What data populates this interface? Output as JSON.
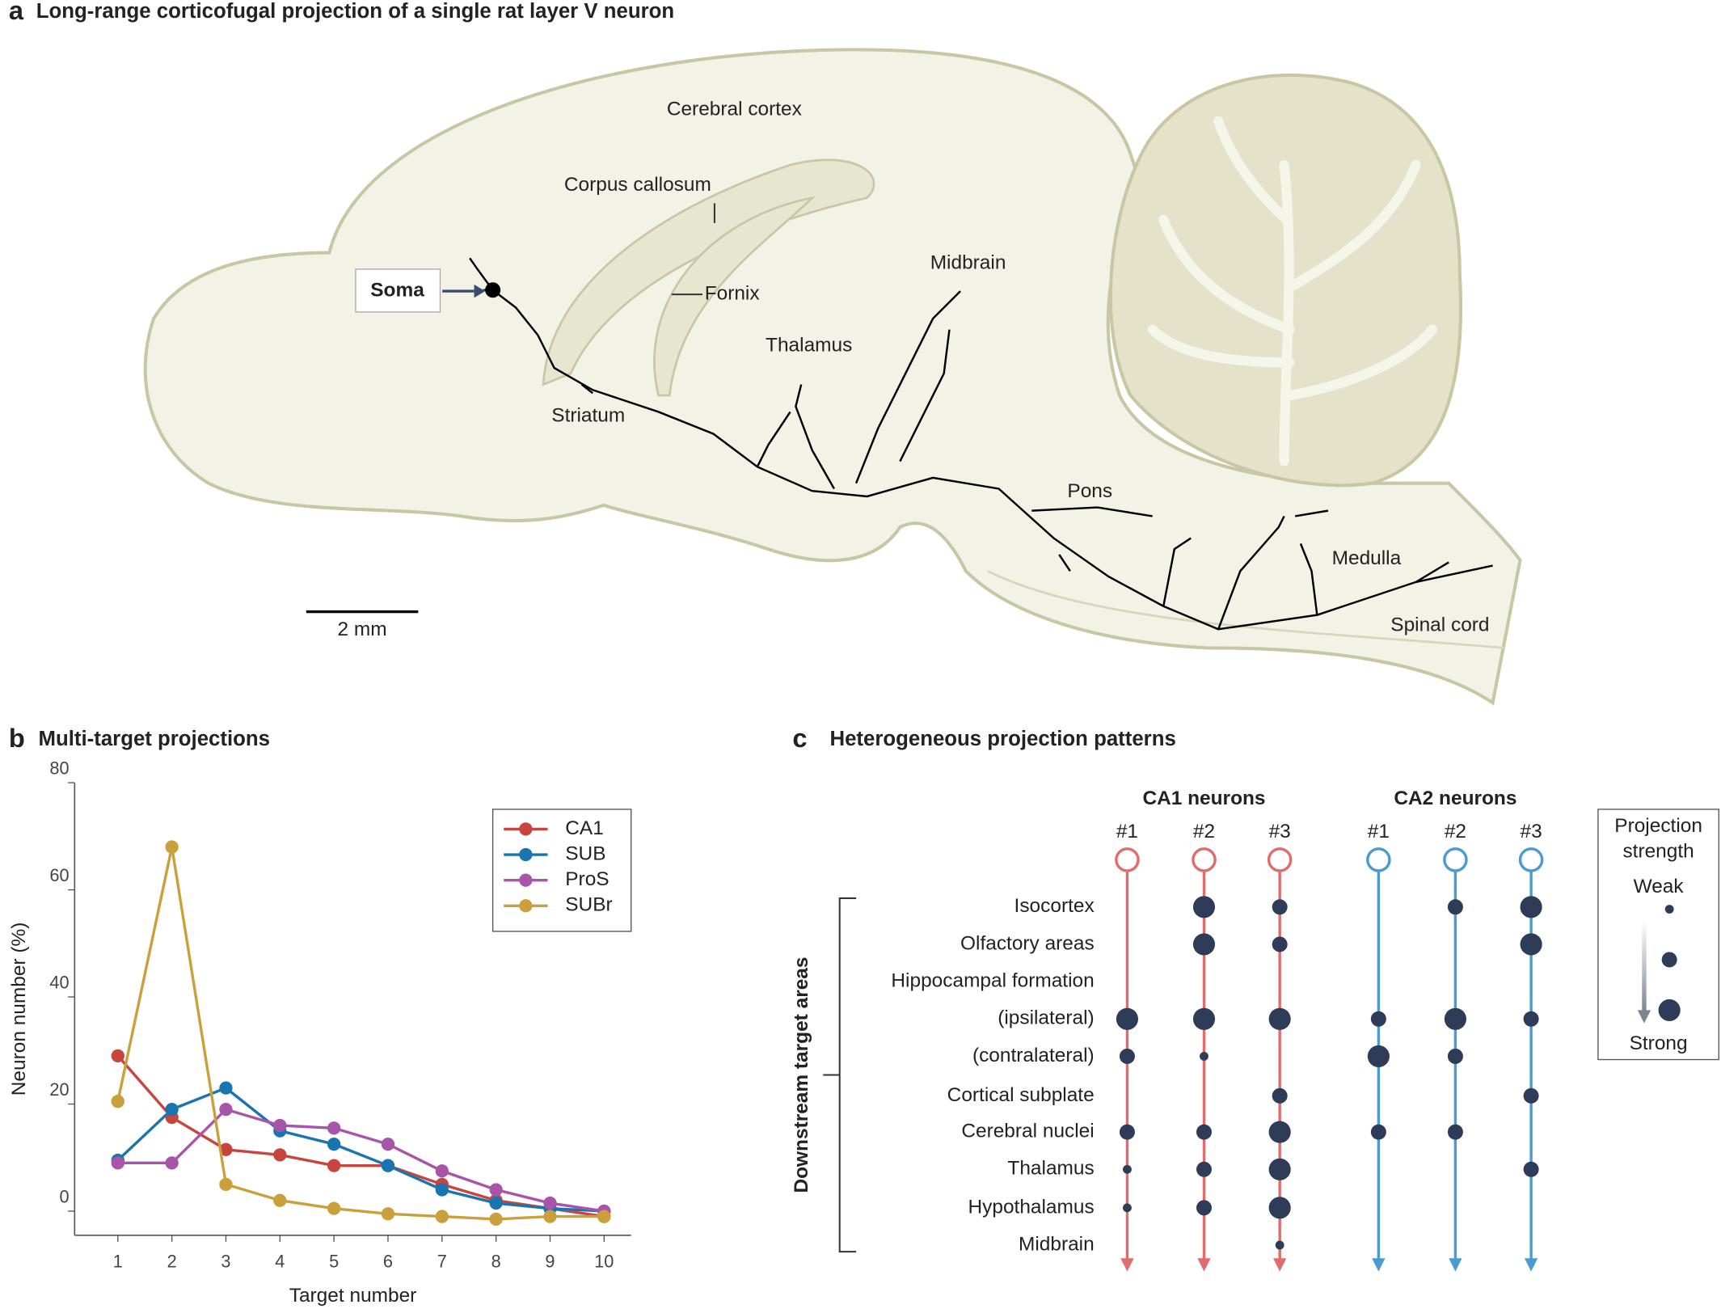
{
  "panel_a": {
    "letter": "a",
    "title": "Long-range corticofugal projection of a single rat layer V neuron",
    "labels": {
      "cerebral_cortex": "Cerebral cortex",
      "corpus_callosum": "Corpus callosum",
      "midbrain": "Midbrain",
      "soma": "Soma",
      "fornix": "Fornix",
      "thalamus": "Thalamus",
      "striatum": "Striatum",
      "pons": "Pons",
      "medulla": "Medulla",
      "spinal_cord": "Spinal cord"
    },
    "scale_bar": "2 mm"
  },
  "panel_b": {
    "letter": "b",
    "title": "Multi-target projections"
  },
  "chart_data": {
    "type": "line",
    "x_label": "Target number",
    "y_label": "Neuron number (%)",
    "x": [
      1,
      2,
      3,
      4,
      5,
      6,
      7,
      8,
      9,
      10
    ],
    "series": [
      {
        "name": "CA1",
        "color": "#c8443f",
        "values": [
          29,
          17.5,
          11.5,
          10.5,
          8.5,
          8.5,
          5,
          2,
          0.5,
          -1
        ]
      },
      {
        "name": "SUB",
        "color": "#1a74b0",
        "values": [
          9.5,
          19,
          23,
          15,
          12.5,
          8.5,
          4,
          1.5,
          0.5,
          0
        ]
      },
      {
        "name": "ProS",
        "color": "#a854a8",
        "values": [
          9,
          9,
          19,
          16,
          15.5,
          12.5,
          7.5,
          4,
          1.5,
          0
        ]
      },
      {
        "name": "SUBr",
        "color": "#c9a03c",
        "values": [
          20.5,
          68,
          5,
          2,
          0.5,
          -0.5,
          -1,
          -1.5,
          -1,
          -1
        ]
      }
    ],
    "xlim": [
      0.2,
      10.5
    ],
    "ylim": [
      -4.5,
      80
    ],
    "xticks": [
      1,
      2,
      3,
      4,
      5,
      6,
      7,
      8,
      9,
      10
    ],
    "yticks": [
      0,
      20,
      40,
      60,
      80
    ],
    "legend": "upper right",
    "grid": false
  },
  "panel_c": {
    "letter": "c",
    "title": "Heterogeneous projection patterns",
    "side_label": "Downstream target areas",
    "rows": [
      "Isocortex",
      "Olfactory areas",
      "Hippocampal formation",
      "(ipsilateral)",
      "(contralateral)",
      "Cortical subplate",
      "Cerebral nuclei",
      "Thalamus",
      "Hypothalamus",
      "Midbrain"
    ],
    "groups": [
      {
        "name": "CA1 neurons",
        "color": "#e06c6c",
        "neurons": [
          {
            "label": "#1",
            "values": [
              null,
              null,
              null,
              3,
              2,
              null,
              2,
              1,
              1,
              null
            ]
          },
          {
            "label": "#2",
            "values": [
              3,
              3,
              null,
              3,
              1,
              null,
              2,
              2,
              2,
              null
            ]
          },
          {
            "label": "#3",
            "values": [
              2,
              2,
              null,
              3,
              null,
              2,
              3,
              3,
              3,
              1
            ]
          }
        ]
      },
      {
        "name": "CA2 neurons",
        "color": "#4b9ad0",
        "neurons": [
          {
            "label": "#1",
            "values": [
              null,
              null,
              null,
              2,
              3,
              null,
              2,
              null,
              null,
              null
            ]
          },
          {
            "label": "#2",
            "values": [
              2,
              null,
              null,
              3,
              2,
              null,
              2,
              null,
              null,
              null
            ]
          },
          {
            "label": "#3",
            "values": [
              3,
              3,
              null,
              2,
              null,
              2,
              null,
              2,
              null,
              null
            ]
          }
        ]
      }
    ],
    "legend": {
      "title_lines": [
        "Projection",
        "strength"
      ],
      "weak": "Weak",
      "strong": "Strong",
      "sizes": [
        1,
        2,
        3
      ]
    }
  }
}
